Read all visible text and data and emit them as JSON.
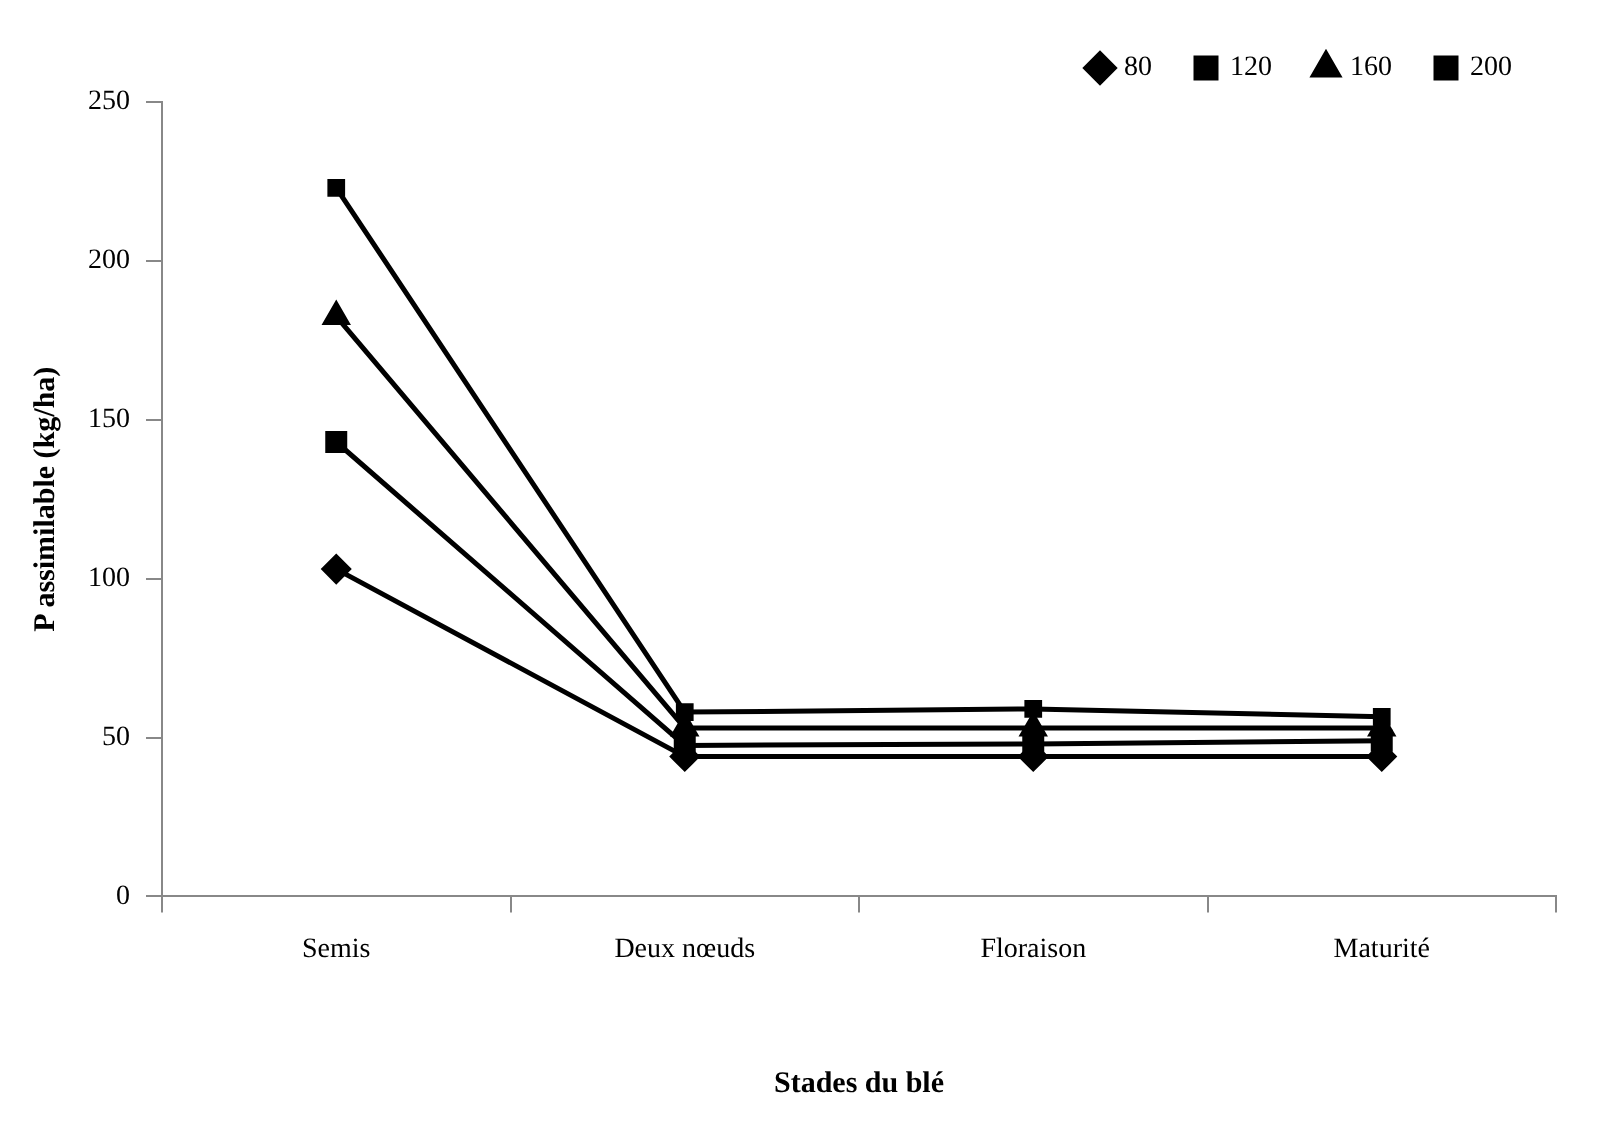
{
  "chart_data": {
    "type": "line",
    "xlabel": "Stades du blé",
    "ylabel": "P assimilable (kg/ha)",
    "categories": [
      "Semis",
      "Deux nœuds",
      "Floraison",
      "Maturité"
    ],
    "series": [
      {
        "name": "80",
        "color": "#000000",
        "marker": "diamond",
        "values": [
          103,
          44,
          44,
          44
        ]
      },
      {
        "name": "120",
        "color": "#000000",
        "marker": "square",
        "values": [
          143,
          47.5,
          48,
          49
        ]
      },
      {
        "name": "160",
        "color": "#000000",
        "marker": "triangle",
        "values": [
          182.5,
          53,
          53,
          53
        ]
      },
      {
        "name": "200",
        "color": "#000000",
        "marker": "square",
        "values": [
          223,
          58,
          59,
          56.5
        ]
      }
    ],
    "ylim": [
      0,
      250
    ],
    "yticks": [
      0,
      50,
      100,
      150,
      200,
      250
    ],
    "grid": false,
    "legend": "top right",
    "line_style": "solid"
  }
}
